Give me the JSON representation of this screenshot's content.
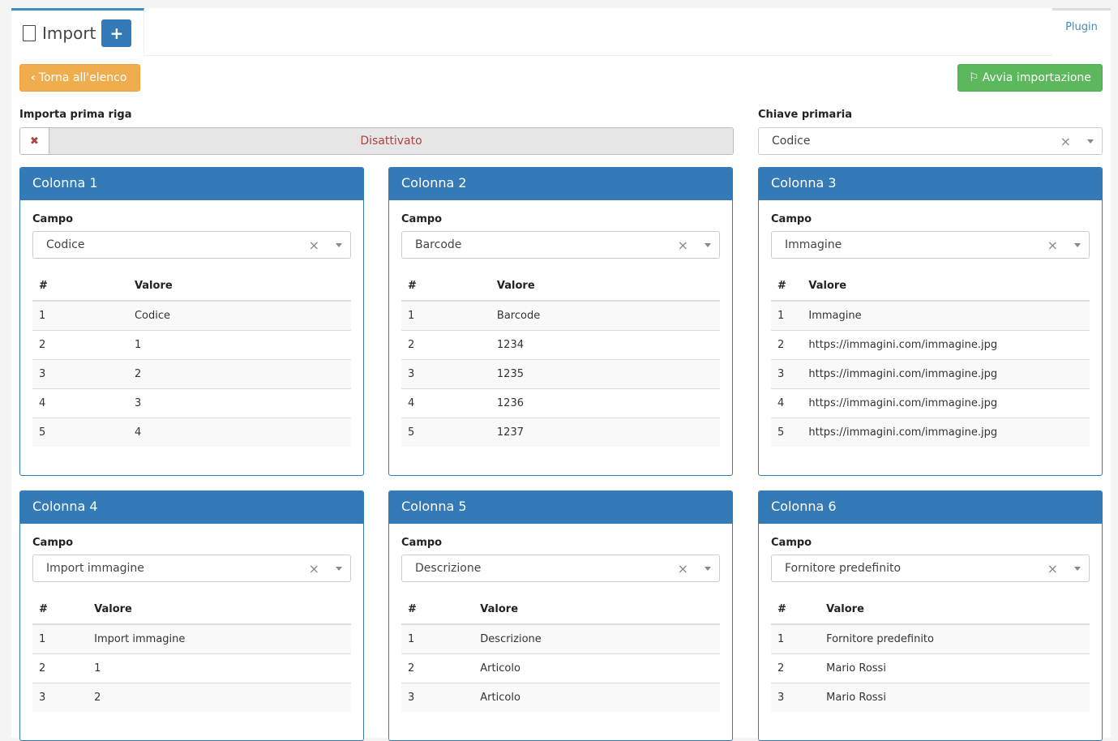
{
  "tabs": {
    "import": "Import",
    "plugin": "Plugin"
  },
  "buttons": {
    "back": "Torna all'elenco",
    "start": "Avvia importazione"
  },
  "first_row": {
    "label": "Importa prima riga",
    "value": "Disattivato"
  },
  "primary_key": {
    "label": "Chiave primaria",
    "value": "Codice"
  },
  "columns": [
    {
      "title": "Colonna 1",
      "field_label": "Campo",
      "field": "Codice",
      "headers": [
        "#",
        "Valore"
      ],
      "rows": [
        [
          "1",
          "Codice"
        ],
        [
          "2",
          "1"
        ],
        [
          "3",
          "2"
        ],
        [
          "4",
          "3"
        ],
        [
          "5",
          "4"
        ]
      ]
    },
    {
      "title": "Colonna 2",
      "field_label": "Campo",
      "field": "Barcode",
      "headers": [
        "#",
        "Valore"
      ],
      "rows": [
        [
          "1",
          "Barcode"
        ],
        [
          "2",
          "1234"
        ],
        [
          "3",
          "1235"
        ],
        [
          "4",
          "1236"
        ],
        [
          "5",
          "1237"
        ]
      ]
    },
    {
      "title": "Colonna 3",
      "field_label": "Campo",
      "field": "Immagine",
      "headers": [
        "#",
        "Valore"
      ],
      "rows": [
        [
          "1",
          "Immagine"
        ],
        [
          "2",
          "https://immagini.com/immagine.jpg"
        ],
        [
          "3",
          "https://immagini.com/immagine.jpg"
        ],
        [
          "4",
          "https://immagini.com/immagine.jpg"
        ],
        [
          "5",
          "https://immagini.com/immagine.jpg"
        ]
      ]
    },
    {
      "title": "Colonna 4",
      "field_label": "Campo",
      "field": "Import immagine",
      "headers": [
        "#",
        "Valore"
      ],
      "rows": [
        [
          "1",
          "Import immagine"
        ],
        [
          "2",
          "1"
        ],
        [
          "3",
          "2"
        ]
      ]
    },
    {
      "title": "Colonna 5",
      "field_label": "Campo",
      "field": "Descrizione",
      "headers": [
        "#",
        "Valore"
      ],
      "rows": [
        [
          "1",
          "Descrizione"
        ],
        [
          "2",
          "Articolo"
        ],
        [
          "3",
          "Articolo"
        ]
      ]
    },
    {
      "title": "Colonna 6",
      "field_label": "Campo",
      "field": "Fornitore predefinito",
      "headers": [
        "#",
        "Valore"
      ],
      "rows": [
        [
          "1",
          "Fornitore predefinito"
        ],
        [
          "2",
          "Mario Rossi"
        ],
        [
          "3",
          "Mario Rossi"
        ]
      ]
    }
  ]
}
